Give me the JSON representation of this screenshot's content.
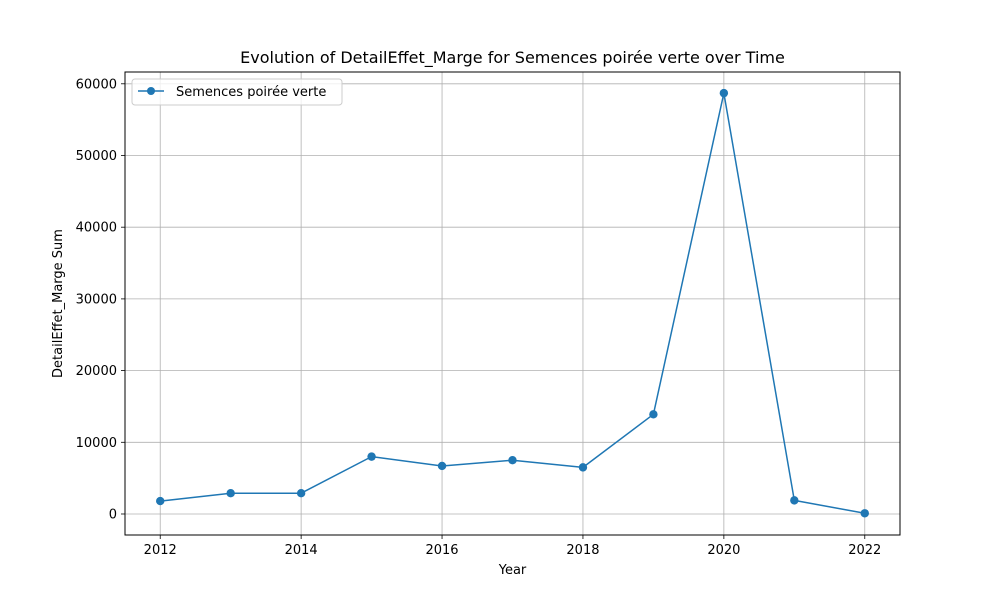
{
  "chart_data": {
    "type": "line",
    "title": "Evolution of DetailEffet_Marge for Semences poirée verte over Time",
    "xlabel": "Year",
    "ylabel": "DetailEffet_Marge Sum",
    "x": [
      2012,
      2013,
      2014,
      2015,
      2016,
      2017,
      2018,
      2019,
      2020,
      2021,
      2022
    ],
    "series": [
      {
        "name": "Semences poirée verte",
        "values": [
          1800,
          2900,
          2900,
          8000,
          6700,
          7500,
          6500,
          13900,
          58700,
          1900,
          100
        ],
        "color": "#1f77b4",
        "marker": "circle"
      }
    ],
    "xlim": [
      2011.5,
      2022.5
    ],
    "ylim": [
      -2930,
      61645
    ],
    "x_ticks": [
      2012,
      2014,
      2016,
      2018,
      2020,
      2022
    ],
    "y_ticks": [
      0,
      10000,
      20000,
      30000,
      40000,
      50000,
      60000
    ],
    "x_tick_labels": [
      "2012",
      "2014",
      "2016",
      "2018",
      "2020",
      "2022"
    ],
    "y_tick_labels": [
      "0",
      "10000",
      "20000",
      "30000",
      "40000",
      "50000",
      "60000"
    ],
    "grid": true,
    "legend_position": "upper-left",
    "colors": {
      "grid": "#b0b0b0",
      "axes": "#000000",
      "background": "#ffffff"
    }
  }
}
